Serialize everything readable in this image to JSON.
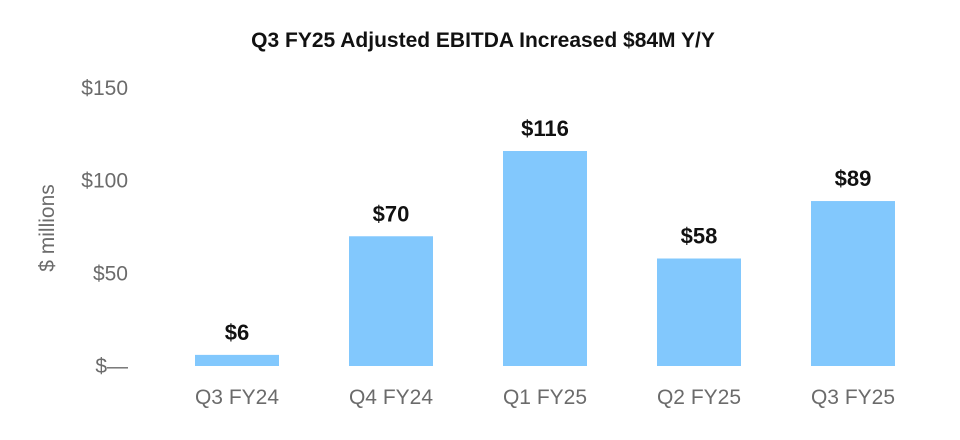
{
  "chart_data": {
    "type": "bar",
    "title": "Q3 FY25 Adjusted EBITDA Increased $84M Y/Y",
    "ylabel": "$ millions",
    "xlabel": "",
    "ylim": [
      0,
      150
    ],
    "yticks": [
      {
        "value": 150,
        "label": "$150"
      },
      {
        "value": 100,
        "label": "$100"
      },
      {
        "value": 50,
        "label": "$50"
      },
      {
        "value": 0,
        "label": "$—"
      }
    ],
    "categories": [
      "Q3 FY24",
      "Q4 FY24",
      "Q1 FY25",
      "Q2 FY25",
      "Q3 FY25"
    ],
    "values": [
      6,
      70,
      116,
      58,
      89
    ],
    "data_labels": [
      "$6",
      "$70",
      "$116",
      "$58",
      "$89"
    ],
    "bar_color": "#82c8fd",
    "grid": false
  }
}
